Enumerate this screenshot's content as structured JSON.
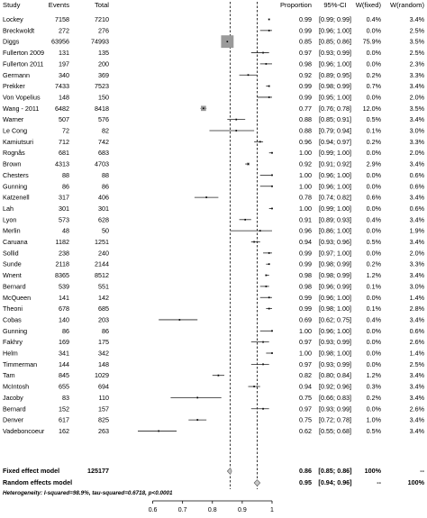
{
  "headers": {
    "study": "Study",
    "events": "Events",
    "total": "Total",
    "proportion": "Proportion",
    "ci": "95%-CI",
    "w_fixed": "W(fixed)",
    "w_random": "W(random)"
  },
  "studies": [
    {
      "study": "Lockey",
      "events": "7158",
      "total": "7210",
      "proportion": "0.99",
      "ci": "[0.99; 0.99]",
      "w_fixed": "0.4%",
      "w_random": "3.4%"
    },
    {
      "study": "Breckwoldt",
      "events": "272",
      "total": "276",
      "proportion": "0.99",
      "ci": "[0.96; 1.00]",
      "w_fixed": "0.0%",
      "w_random": "2.5%"
    },
    {
      "study": "Diggs",
      "events": "63956",
      "total": "74993",
      "proportion": "0.85",
      "ci": "[0.85; 0.86]",
      "w_fixed": "75.9%",
      "w_random": "3.5%"
    },
    {
      "study": "Fullerton 2009",
      "events": "131",
      "total": "135",
      "proportion": "0.97",
      "ci": "[0.93; 0.99]",
      "w_fixed": "0.0%",
      "w_random": "2.5%"
    },
    {
      "study": "Fullerton 2011",
      "events": "197",
      "total": "200",
      "proportion": "0.98",
      "ci": "[0.96; 1.00]",
      "w_fixed": "0.0%",
      "w_random": "2.3%"
    },
    {
      "study": "Germann",
      "events": "340",
      "total": "369",
      "proportion": "0.92",
      "ci": "[0.89; 0.95]",
      "w_fixed": "0.2%",
      "w_random": "3.3%"
    },
    {
      "study": "Prekker",
      "events": "7433",
      "total": "7523",
      "proportion": "0.99",
      "ci": "[0.98; 0.99]",
      "w_fixed": "0.7%",
      "w_random": "3.4%"
    },
    {
      "study": "Von Vopelius",
      "events": "148",
      "total": "150",
      "proportion": "0.99",
      "ci": "[0.95; 1.00]",
      "w_fixed": "0.0%",
      "w_random": "2.0%"
    },
    {
      "study": "Wang - 2011",
      "events": "6482",
      "total": "8418",
      "proportion": "0.77",
      "ci": "[0.76; 0.78]",
      "w_fixed": "12.0%",
      "w_random": "3.5%"
    },
    {
      "study": "Warner",
      "events": "507",
      "total": "576",
      "proportion": "0.88",
      "ci": "[0.85; 0.91]",
      "w_fixed": "0.5%",
      "w_random": "3.4%"
    },
    {
      "study": "Le Cong",
      "events": "72",
      "total": "82",
      "proportion": "0.88",
      "ci": "[0.79; 0.94]",
      "w_fixed": "0.1%",
      "w_random": "3.0%"
    },
    {
      "study": "Kamiutsuri",
      "events": "712",
      "total": "742",
      "proportion": "0.96",
      "ci": "[0.94; 0.97]",
      "w_fixed": "0.2%",
      "w_random": "3.3%"
    },
    {
      "study": "Rognås",
      "events": "681",
      "total": "683",
      "proportion": "1.00",
      "ci": "[0.99; 1.00]",
      "w_fixed": "0.0%",
      "w_random": "2.0%"
    },
    {
      "study": "Brown",
      "events": "4313",
      "total": "4703",
      "proportion": "0.92",
      "ci": "[0.91; 0.92]",
      "w_fixed": "2.9%",
      "w_random": "3.4%"
    },
    {
      "study": "Chesters",
      "events": "88",
      "total": "88",
      "proportion": "1.00",
      "ci": "[0.96; 1.00]",
      "w_fixed": "0.0%",
      "w_random": "0.6%"
    },
    {
      "study": "Gunning",
      "events": "86",
      "total": "86",
      "proportion": "1.00",
      "ci": "[0.96; 1.00]",
      "w_fixed": "0.0%",
      "w_random": "0.6%"
    },
    {
      "study": "Katzenell",
      "events": "317",
      "total": "406",
      "proportion": "0.78",
      "ci": "[0.74; 0.82]",
      "w_fixed": "0.6%",
      "w_random": "3.4%"
    },
    {
      "study": "Lah",
      "events": "301",
      "total": "301",
      "proportion": "1.00",
      "ci": "[0.99; 1.00]",
      "w_fixed": "0.0%",
      "w_random": "0.6%"
    },
    {
      "study": "Lyon",
      "events": "573",
      "total": "628",
      "proportion": "0.91",
      "ci": "[0.89; 0.93]",
      "w_fixed": "0.4%",
      "w_random": "3.4%"
    },
    {
      "study": "Merlin",
      "events": "48",
      "total": "50",
      "proportion": "0.96",
      "ci": "[0.86; 1.00]",
      "w_fixed": "0.0%",
      "w_random": "1.9%"
    },
    {
      "study": "Caruana",
      "events": "1182",
      "total": "1251",
      "proportion": "0.94",
      "ci": "[0.93; 0.96]",
      "w_fixed": "0.5%",
      "w_random": "3.4%"
    },
    {
      "study": "Sollid",
      "events": "238",
      "total": "240",
      "proportion": "0.99",
      "ci": "[0.97; 1.00]",
      "w_fixed": "0.0%",
      "w_random": "2.0%"
    },
    {
      "study": "Sunde",
      "events": "2118",
      "total": "2144",
      "proportion": "0.99",
      "ci": "[0.98; 0.99]",
      "w_fixed": "0.2%",
      "w_random": "3.3%"
    },
    {
      "study": "Wnent",
      "events": "8365",
      "total": "8512",
      "proportion": "0.98",
      "ci": "[0.98; 0.99]",
      "w_fixed": "1.2%",
      "w_random": "3.4%"
    },
    {
      "study": "Bernard",
      "events": "539",
      "total": "551",
      "proportion": "0.98",
      "ci": "[0.96; 0.99]",
      "w_fixed": "0.1%",
      "w_random": "3.0%"
    },
    {
      "study": "McQueen",
      "events": "141",
      "total": "142",
      "proportion": "0.99",
      "ci": "[0.96; 1.00]",
      "w_fixed": "0.0%",
      "w_random": "1.4%"
    },
    {
      "study": "Theoni",
      "events": "678",
      "total": "685",
      "proportion": "0.99",
      "ci": "[0.98; 1.00]",
      "w_fixed": "0.1%",
      "w_random": "2.8%"
    },
    {
      "study": "Cobas",
      "events": "140",
      "total": "203",
      "proportion": "0.69",
      "ci": "[0.62; 0.75]",
      "w_fixed": "0.4%",
      "w_random": "3.4%"
    },
    {
      "study": "Gunning",
      "events": "86",
      "total": "86",
      "proportion": "1.00",
      "ci": "[0.96; 1.00]",
      "w_fixed": "0.0%",
      "w_random": "0.6%"
    },
    {
      "study": "Fakhry",
      "events": "169",
      "total": "175",
      "proportion": "0.97",
      "ci": "[0.93; 0.99]",
      "w_fixed": "0.0%",
      "w_random": "2.6%"
    },
    {
      "study": "Helm",
      "events": "341",
      "total": "342",
      "proportion": "1.00",
      "ci": "[0.98; 1.00]",
      "w_fixed": "0.0%",
      "w_random": "1.4%"
    },
    {
      "study": "Timmerman",
      "events": "144",
      "total": "148",
      "proportion": "0.97",
      "ci": "[0.93; 0.99]",
      "w_fixed": "0.0%",
      "w_random": "2.5%"
    },
    {
      "study": "Tam",
      "events": "845",
      "total": "1029",
      "proportion": "0.82",
      "ci": "[0.80; 0.84]",
      "w_fixed": "1.2%",
      "w_random": "3.4%"
    },
    {
      "study": "McIntosh",
      "events": "655",
      "total": "694",
      "proportion": "0.94",
      "ci": "[0.92; 0.96]",
      "w_fixed": "0.3%",
      "w_random": "3.4%"
    },
    {
      "study": "Jacoby",
      "events": "83",
      "total": "110",
      "proportion": "0.75",
      "ci": "[0.66; 0.83]",
      "w_fixed": "0.2%",
      "w_random": "3.4%"
    },
    {
      "study": "Bernard",
      "events": "152",
      "total": "157",
      "proportion": "0.97",
      "ci": "[0.93; 0.99]",
      "w_fixed": "0.0%",
      "w_random": "2.6%"
    },
    {
      "study": "Denver",
      "events": "617",
      "total": "825",
      "proportion": "0.75",
      "ci": "[0.72; 0.78]",
      "w_fixed": "1.0%",
      "w_random": "3.4%"
    },
    {
      "study": "Vadeboncoeur",
      "events": "162",
      "total": "263",
      "proportion": "0.62",
      "ci": "[0.55; 0.68]",
      "w_fixed": "0.5%",
      "w_random": "3.4%"
    }
  ],
  "summary": {
    "fixed": {
      "label": "Fixed effect model",
      "total": "125177",
      "proportion": "0.86",
      "ci": "[0.85; 0.86]",
      "w_fixed": "100%",
      "w_random": "--"
    },
    "random": {
      "label": "Random effects model",
      "total": "",
      "proportion": "0.95",
      "ci": "[0.94; 0.96]",
      "w_fixed": "--",
      "w_random": "100%"
    }
  },
  "heterogeneity": "Heterogeneity: I-squared=98.9%, tau-squared=0.6718, p<0.0001",
  "chart_data": {
    "type": "forest",
    "x_ticks": [
      "0.6",
      "0.7",
      "0.8",
      "0.9",
      "1"
    ],
    "xlim": [
      0.55,
      1.0
    ],
    "reference_lines": {
      "fixed": 0.86,
      "random": 0.95
    },
    "points": [
      {
        "est": 0.99,
        "lo": 0.99,
        "hi": 0.99,
        "w": 0.4
      },
      {
        "est": 0.99,
        "lo": 0.96,
        "hi": 1.0,
        "w": 0.0
      },
      {
        "est": 0.85,
        "lo": 0.85,
        "hi": 0.86,
        "w": 75.9
      },
      {
        "est": 0.97,
        "lo": 0.93,
        "hi": 0.99,
        "w": 0.0
      },
      {
        "est": 0.98,
        "lo": 0.96,
        "hi": 1.0,
        "w": 0.0
      },
      {
        "est": 0.92,
        "lo": 0.89,
        "hi": 0.95,
        "w": 0.2
      },
      {
        "est": 0.99,
        "lo": 0.98,
        "hi": 0.99,
        "w": 0.7
      },
      {
        "est": 0.99,
        "lo": 0.95,
        "hi": 1.0,
        "w": 0.0
      },
      {
        "est": 0.77,
        "lo": 0.76,
        "hi": 0.78,
        "w": 12.0
      },
      {
        "est": 0.88,
        "lo": 0.85,
        "hi": 0.91,
        "w": 0.5
      },
      {
        "est": 0.88,
        "lo": 0.79,
        "hi": 0.94,
        "w": 0.1
      },
      {
        "est": 0.96,
        "lo": 0.94,
        "hi": 0.97,
        "w": 0.2
      },
      {
        "est": 1.0,
        "lo": 0.99,
        "hi": 1.0,
        "w": 0.0
      },
      {
        "est": 0.92,
        "lo": 0.91,
        "hi": 0.92,
        "w": 2.9
      },
      {
        "est": 1.0,
        "lo": 0.96,
        "hi": 1.0,
        "w": 0.0
      },
      {
        "est": 1.0,
        "lo": 0.96,
        "hi": 1.0,
        "w": 0.0
      },
      {
        "est": 0.78,
        "lo": 0.74,
        "hi": 0.82,
        "w": 0.6
      },
      {
        "est": 1.0,
        "lo": 0.99,
        "hi": 1.0,
        "w": 0.0
      },
      {
        "est": 0.91,
        "lo": 0.89,
        "hi": 0.93,
        "w": 0.4
      },
      {
        "est": 0.96,
        "lo": 0.86,
        "hi": 1.0,
        "w": 0.0
      },
      {
        "est": 0.94,
        "lo": 0.93,
        "hi": 0.96,
        "w": 0.5
      },
      {
        "est": 0.99,
        "lo": 0.97,
        "hi": 1.0,
        "w": 0.0
      },
      {
        "est": 0.99,
        "lo": 0.98,
        "hi": 0.99,
        "w": 0.2
      },
      {
        "est": 0.98,
        "lo": 0.98,
        "hi": 0.99,
        "w": 1.2
      },
      {
        "est": 0.98,
        "lo": 0.96,
        "hi": 0.99,
        "w": 0.1
      },
      {
        "est": 0.99,
        "lo": 0.96,
        "hi": 1.0,
        "w": 0.0
      },
      {
        "est": 0.99,
        "lo": 0.98,
        "hi": 1.0,
        "w": 0.1
      },
      {
        "est": 0.69,
        "lo": 0.62,
        "hi": 0.75,
        "w": 0.4
      },
      {
        "est": 1.0,
        "lo": 0.96,
        "hi": 1.0,
        "w": 0.0
      },
      {
        "est": 0.97,
        "lo": 0.93,
        "hi": 0.99,
        "w": 0.0
      },
      {
        "est": 1.0,
        "lo": 0.98,
        "hi": 1.0,
        "w": 0.0
      },
      {
        "est": 0.97,
        "lo": 0.93,
        "hi": 0.99,
        "w": 0.0
      },
      {
        "est": 0.82,
        "lo": 0.8,
        "hi": 0.84,
        "w": 1.2
      },
      {
        "est": 0.94,
        "lo": 0.92,
        "hi": 0.96,
        "w": 0.3
      },
      {
        "est": 0.75,
        "lo": 0.66,
        "hi": 0.83,
        "w": 0.2
      },
      {
        "est": 0.97,
        "lo": 0.93,
        "hi": 0.99,
        "w": 0.0
      },
      {
        "est": 0.75,
        "lo": 0.72,
        "hi": 0.78,
        "w": 1.0
      },
      {
        "est": 0.62,
        "lo": 0.55,
        "hi": 0.68,
        "w": 0.5
      }
    ],
    "fixed_diamond": {
      "est": 0.86,
      "lo": 0.85,
      "hi": 0.86
    },
    "random_diamond": {
      "est": 0.95,
      "lo": 0.94,
      "hi": 0.96
    }
  }
}
